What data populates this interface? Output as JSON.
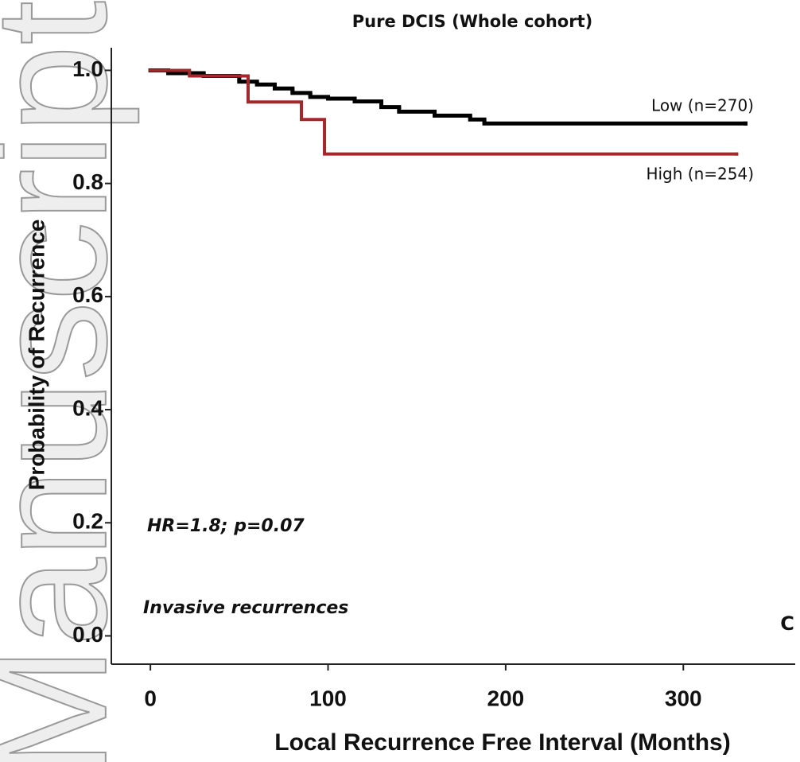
{
  "chart_data": {
    "type": "step",
    "title": "Pure DCIS (Whole cohort)",
    "x_label": "Local Recurrence Free Interval (Months)",
    "y_label": "Probability of Recurrence",
    "annotations": [
      "HR=1.8; p=0.07",
      "Invasive  recurrences"
    ],
    "panel_label": "C",
    "watermark": "Manuscript",
    "xlim": [
      -22,
      363
    ],
    "ylim": [
      -0.05,
      1.04
    ],
    "xticks": [
      0,
      100,
      200,
      300
    ],
    "yticks": [
      {
        "value": 0,
        "label": "0.0"
      },
      {
        "value": 0.2,
        "label": "0.2"
      },
      {
        "value": 0.4,
        "label": "0.4"
      },
      {
        "value": 0.6,
        "label": "0.6"
      },
      {
        "value": 0.8,
        "label": "0.8"
      },
      {
        "value": 1,
        "label": "1.0"
      }
    ],
    "series": [
      {
        "name": "Low (n=270)",
        "color": "#000000",
        "x": [
          0,
          10,
          30,
          50,
          60,
          70,
          80,
          90,
          100,
          115,
          130,
          140,
          160,
          180,
          188,
          335
        ],
        "values": [
          1,
          0.995,
          0.99,
          0.98,
          0.975,
          0.968,
          0.96,
          0.953,
          0.95,
          0.945,
          0.935,
          0.927,
          0.92,
          0.913,
          0.906,
          0.906
        ]
      },
      {
        "name": "High (n=254)",
        "color": "#a3282b",
        "x": [
          0,
          22,
          55,
          85,
          98,
          330
        ],
        "values": [
          1,
          0.99,
          0.944,
          0.913,
          0.852,
          0.852
        ]
      }
    ]
  }
}
